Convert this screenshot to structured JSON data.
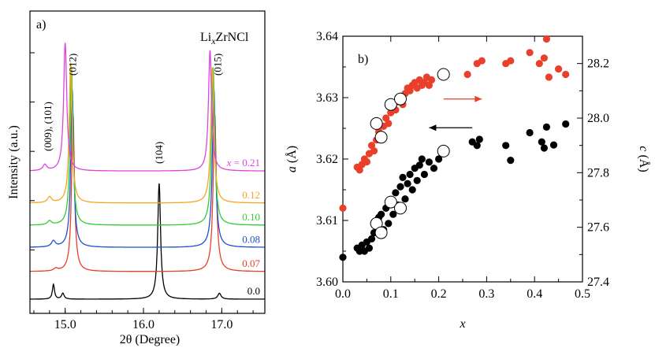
{
  "figure": {
    "panel_a_label": "a)",
    "panel_b_label": "b)",
    "compound": "LixZrNCl",
    "compound_base": "Li",
    "compound_sub": "x",
    "compound_rest": "ZrNCl"
  },
  "chart_data": [
    {
      "panel": "a)",
      "type": "line",
      "title": "LixZrNCl",
      "xlabel": "2θ  (Degree)",
      "ylabel": "Intensity  (a.u.)",
      "xlim": [
        14.55,
        17.55
      ],
      "x_ticks": [
        "15.0",
        "16.0",
        "17.0"
      ],
      "x_tick_values": [
        15.0,
        16.0,
        17.0
      ],
      "peak_labels": [
        {
          "text": "(009), (101)",
          "x": 14.78
        },
        {
          "text": "(012)",
          "x": 15.1
        },
        {
          "text": "(104)",
          "x": 16.2
        },
        {
          "text": "(015)",
          "x": 16.95
        }
      ],
      "series": [
        {
          "name": "0.0",
          "label": "0.0",
          "color": "#000000",
          "baseline": 0.0,
          "peaks": [
            [
              14.85,
              0.3,
              0.016
            ],
            [
              14.97,
              0.12,
              0.02
            ],
            [
              16.2,
              2.35,
              0.022
            ],
            [
              16.97,
              0.12,
              0.025
            ]
          ]
        },
        {
          "name": "0.07",
          "label": "0.07",
          "color": "#e8402a",
          "baseline": 0.56,
          "peaks": [
            [
              14.88,
              0.05,
              0.03
            ],
            [
              15.1,
              3.2,
              0.022
            ],
            [
              16.91,
              3.2,
              0.024
            ]
          ]
        },
        {
          "name": "0.08",
          "label": "0.08",
          "color": "#2050d0",
          "baseline": 1.05,
          "peaks": [
            [
              14.85,
              0.12,
              0.03
            ],
            [
              15.09,
              3.2,
              0.022
            ],
            [
              16.9,
              3.2,
              0.024
            ]
          ]
        },
        {
          "name": "0.10",
          "label": "0.10",
          "color": "#33cc33",
          "baseline": 1.5,
          "peaks": [
            [
              14.8,
              0.08,
              0.03
            ],
            [
              15.08,
              3.2,
              0.022
            ],
            [
              16.89,
              3.2,
              0.024
            ]
          ]
        },
        {
          "name": "0.12",
          "label": "0.12",
          "color": "#f5a623",
          "baseline": 1.95,
          "peaks": [
            [
              14.8,
              0.12,
              0.03
            ],
            [
              15.07,
              2.85,
              0.022
            ],
            [
              16.88,
              2.75,
              0.024
            ]
          ]
        },
        {
          "name": "x = 0.21",
          "label": "x = 0.21",
          "label_prefix": "x",
          "label_rest": " = 0.21",
          "color": "#dd44dd",
          "baseline": 2.6,
          "peaks": [
            [
              14.74,
              0.12,
              0.03
            ],
            [
              15.0,
              2.6,
              0.024
            ],
            [
              16.85,
              2.45,
              0.024
            ]
          ]
        }
      ]
    },
    {
      "panel": "b)",
      "type": "scatter",
      "xlabel": "x",
      "ylabel_left": "a (Å)",
      "ylabel_left_var": "a",
      "ylabel_left_unit": "(Å)",
      "ylabel_right": "c (Å)",
      "ylabel_right_var": "c",
      "ylabel_right_unit": "(Å)",
      "xlim": [
        0.0,
        0.5
      ],
      "ylim_left": [
        3.6,
        3.64
      ],
      "ylim_right": [
        27.4,
        28.3
      ],
      "x_ticks": [
        "0.0",
        "0.1",
        "0.2",
        "0.3",
        "0.4",
        "0.5"
      ],
      "x_tick_values": [
        0.0,
        0.1,
        0.2,
        0.3,
        0.4,
        0.5
      ],
      "y_left_ticks": [
        "3.60",
        "3.61",
        "3.62",
        "3.63",
        "3.64"
      ],
      "y_left_tick_values": [
        3.6,
        3.61,
        3.62,
        3.63,
        3.64
      ],
      "y_right_ticks": [
        "27.4",
        "27.6",
        "27.8",
        "28.0",
        "28.2"
      ],
      "y_right_tick_values": [
        27.4,
        27.6,
        27.8,
        28.0,
        28.2
      ],
      "arrows": [
        {
          "series": "c",
          "direction": "right",
          "from": [
            0.21,
            28.07
          ],
          "to": [
            0.29,
            28.07
          ],
          "color": "#e8402a"
        },
        {
          "series": "a",
          "direction": "left",
          "from": [
            0.27,
            3.6251
          ],
          "to": [
            0.18,
            3.6251
          ],
          "color": "#000000"
        }
      ],
      "series": [
        {
          "name": "a (filled)",
          "axis": "left",
          "marker": "filled",
          "color": "#000000",
          "points": [
            [
              0.0,
              3.604
            ],
            [
              0.03,
              3.6055
            ],
            [
              0.035,
              3.605
            ],
            [
              0.04,
              3.606
            ],
            [
              0.045,
              3.605
            ],
            [
              0.05,
              3.6065
            ],
            [
              0.055,
              3.6055
            ],
            [
              0.06,
              3.607
            ],
            [
              0.065,
              3.608
            ],
            [
              0.07,
              3.609
            ],
            [
              0.075,
              3.6105
            ],
            [
              0.08,
              3.611
            ],
            [
              0.085,
              3.6085
            ],
            [
              0.09,
              3.612
            ],
            [
              0.095,
              3.6095
            ],
            [
              0.1,
              3.613
            ],
            [
              0.105,
              3.611
            ],
            [
              0.11,
              3.6145
            ],
            [
              0.115,
              3.6125
            ],
            [
              0.12,
              3.6155
            ],
            [
              0.125,
              3.617
            ],
            [
              0.13,
              3.6135
            ],
            [
              0.135,
              3.616
            ],
            [
              0.14,
              3.6175
            ],
            [
              0.145,
              3.615
            ],
            [
              0.15,
              3.6185
            ],
            [
              0.155,
              3.6165
            ],
            [
              0.16,
              3.619
            ],
            [
              0.165,
              3.62
            ],
            [
              0.17,
              3.6175
            ],
            [
              0.18,
              3.6195
            ],
            [
              0.19,
              3.6185
            ],
            [
              0.2,
              3.62
            ],
            [
              0.27,
              3.6228
            ],
            [
              0.28,
              3.6222
            ],
            [
              0.285,
              3.6232
            ],
            [
              0.34,
              3.6222
            ],
            [
              0.35,
              3.6198
            ],
            [
              0.39,
              3.6243
            ],
            [
              0.415,
              3.6228
            ],
            [
              0.42,
              3.6218
            ],
            [
              0.425,
              3.6252
            ],
            [
              0.44,
              3.6223
            ],
            [
              0.465,
              3.6257
            ]
          ]
        },
        {
          "name": "a (open)",
          "axis": "left",
          "marker": "open",
          "color": "#000000",
          "points": [
            [
              0.07,
              3.6095
            ],
            [
              0.08,
              3.608
            ],
            [
              0.1,
              3.613
            ],
            [
              0.12,
              3.612
            ],
            [
              0.21,
              3.6213
            ]
          ]
        },
        {
          "name": "c (filled)",
          "axis": "right",
          "marker": "filled",
          "color": "#e8402a",
          "points": [
            [
              0.0,
              27.67
            ],
            [
              0.03,
              27.82
            ],
            [
              0.035,
              27.81
            ],
            [
              0.04,
              27.83
            ],
            [
              0.045,
              27.85
            ],
            [
              0.05,
              27.84
            ],
            [
              0.055,
              27.87
            ],
            [
              0.06,
              27.9
            ],
            [
              0.065,
              27.88
            ],
            [
              0.07,
              27.92
            ],
            [
              0.075,
              27.95
            ],
            [
              0.08,
              27.93
            ],
            [
              0.085,
              27.97
            ],
            [
              0.09,
              28.0
            ],
            [
              0.095,
              27.98
            ],
            [
              0.1,
              28.02
            ],
            [
              0.105,
              28.04
            ],
            [
              0.11,
              28.03
            ],
            [
              0.115,
              28.06
            ],
            [
              0.12,
              28.08
            ],
            [
              0.125,
              28.05
            ],
            [
              0.13,
              28.09
            ],
            [
              0.135,
              28.11
            ],
            [
              0.14,
              28.1
            ],
            [
              0.145,
              28.12
            ],
            [
              0.15,
              28.13
            ],
            [
              0.155,
              28.11
            ],
            [
              0.16,
              28.14
            ],
            [
              0.165,
              28.12
            ],
            [
              0.17,
              28.13
            ],
            [
              0.175,
              28.15
            ],
            [
              0.18,
              28.12
            ],
            [
              0.185,
              28.14
            ],
            [
              0.26,
              28.16
            ],
            [
              0.28,
              28.2
            ],
            [
              0.29,
              28.21
            ],
            [
              0.34,
              28.2
            ],
            [
              0.35,
              28.21
            ],
            [
              0.39,
              28.24
            ],
            [
              0.41,
              28.2
            ],
            [
              0.42,
              28.22
            ],
            [
              0.425,
              28.29
            ],
            [
              0.43,
              28.15
            ],
            [
              0.45,
              28.18
            ],
            [
              0.465,
              28.16
            ]
          ]
        },
        {
          "name": "c (open)",
          "axis": "right",
          "marker": "open",
          "color": "#e8402a",
          "points": [
            [
              0.07,
              27.98
            ],
            [
              0.08,
              27.93
            ],
            [
              0.1,
              28.05
            ],
            [
              0.12,
              28.07
            ],
            [
              0.21,
              28.16
            ]
          ]
        }
      ]
    }
  ]
}
